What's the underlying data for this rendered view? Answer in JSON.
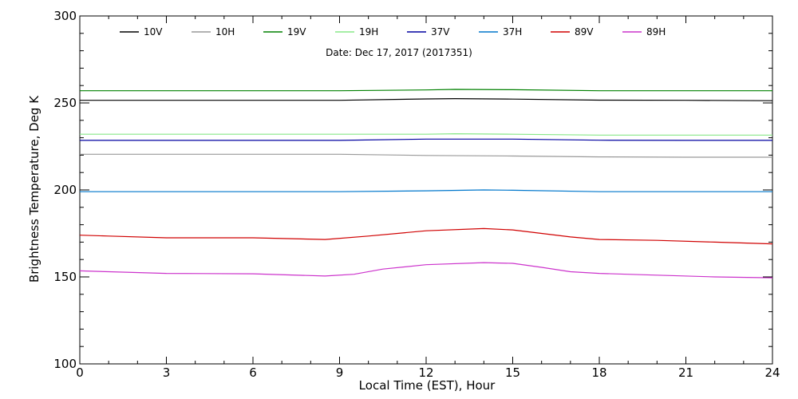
{
  "chart_data": {
    "type": "line",
    "subtitle": "Date: Dec 17, 2017 (2017351)",
    "xlabel": "Local Time (EST), Hour",
    "ylabel": "Brightness Temperature, Deg K",
    "xlim": [
      0,
      24
    ],
    "ylim": [
      100,
      300
    ],
    "xticks": [
      0,
      3,
      6,
      9,
      12,
      15,
      18,
      21,
      24
    ],
    "yticks": [
      100,
      150,
      200,
      250,
      300
    ],
    "grid": false,
    "legend_position": "top",
    "series": [
      {
        "name": "10V",
        "color": "#000000",
        "x": [
          0,
          3,
          6,
          9,
          12,
          13,
          15,
          18,
          21,
          24
        ],
        "y": [
          251.5,
          251.5,
          251.5,
          251.5,
          252.3,
          252.5,
          252.2,
          251.6,
          251.5,
          251.3
        ]
      },
      {
        "name": "10H",
        "color": "#999999",
        "x": [
          0,
          3,
          6,
          9,
          12,
          15,
          18,
          21,
          24
        ],
        "y": [
          220.5,
          220.5,
          220.5,
          220.5,
          219.8,
          219.5,
          219.0,
          218.8,
          218.8
        ]
      },
      {
        "name": "19V",
        "color": "#008000",
        "x": [
          0,
          3,
          6,
          9,
          12,
          13,
          15,
          18,
          21,
          24
        ],
        "y": [
          257.0,
          257.0,
          257.0,
          257.0,
          257.5,
          257.8,
          257.6,
          257.0,
          257.0,
          257.0
        ]
      },
      {
        "name": "19H",
        "color": "#88e888",
        "x": [
          0,
          3,
          6,
          9,
          12,
          13,
          15,
          18,
          21,
          24
        ],
        "y": [
          232.0,
          232.0,
          232.0,
          232.0,
          232.0,
          232.3,
          232.0,
          231.5,
          231.5,
          231.5
        ]
      },
      {
        "name": "37V",
        "color": "#0000a0",
        "x": [
          0,
          3,
          6,
          9,
          12,
          15,
          18,
          21,
          24
        ],
        "y": [
          228.5,
          228.5,
          228.5,
          228.5,
          229.2,
          229.2,
          228.6,
          228.5,
          228.5
        ]
      },
      {
        "name": "37H",
        "color": "#0077cc",
        "x": [
          0,
          3,
          6,
          9,
          12,
          14,
          15,
          18,
          21,
          24
        ],
        "y": [
          199.0,
          199.0,
          199.0,
          199.0,
          199.5,
          200.0,
          199.8,
          199.0,
          199.0,
          199.0
        ]
      },
      {
        "name": "89V",
        "color": "#d00000",
        "x": [
          0,
          1,
          3,
          6,
          8.5,
          10,
          12,
          14,
          15,
          16,
          17,
          18,
          20,
          22,
          24
        ],
        "y": [
          174.0,
          173.5,
          172.5,
          172.5,
          171.5,
          173.5,
          176.5,
          177.8,
          177.0,
          175.0,
          173.0,
          171.5,
          171.0,
          170.0,
          169.0
        ]
      },
      {
        "name": "89H",
        "color": "#cc33cc",
        "x": [
          0,
          1,
          3,
          6,
          8.5,
          9.5,
          10.5,
          12,
          14,
          15,
          16,
          17,
          18,
          20,
          22,
          24
        ],
        "y": [
          153.5,
          153.0,
          152.0,
          151.8,
          150.5,
          151.5,
          154.5,
          157.0,
          158.2,
          157.8,
          155.5,
          153.0,
          152.0,
          151.0,
          150.0,
          149.5
        ]
      }
    ]
  }
}
